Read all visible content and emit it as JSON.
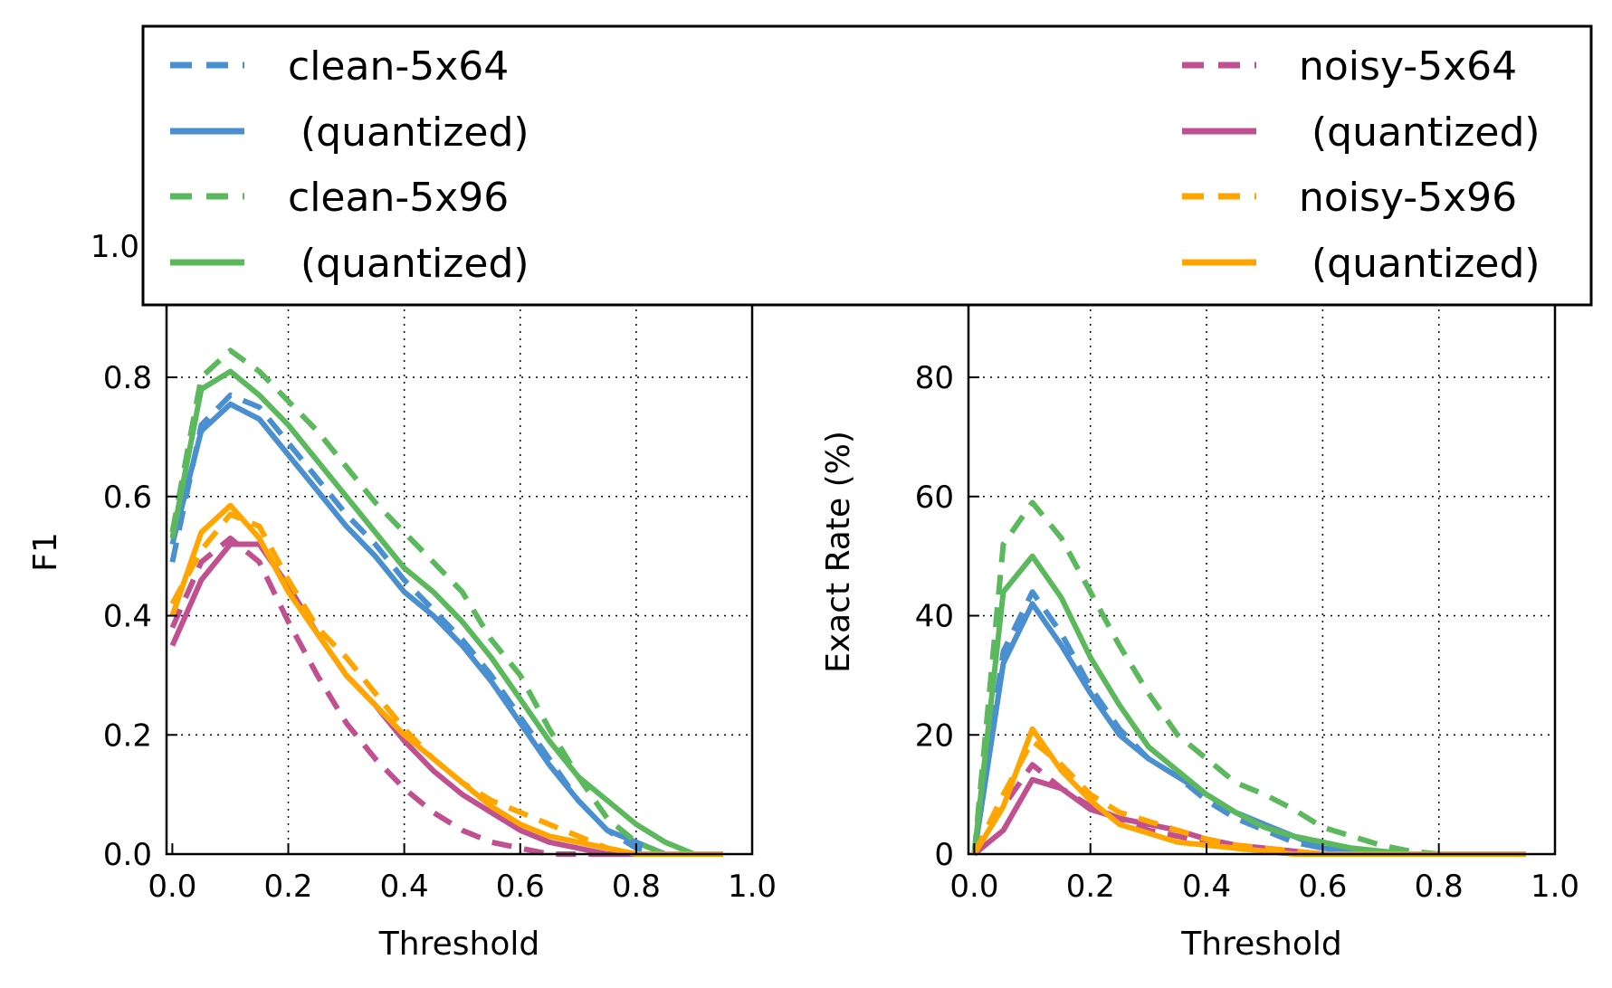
{
  "legend": {
    "entries": [
      {
        "label": "clean-5x64",
        "color": "#4a8fd0",
        "dashed": true,
        "column": "left"
      },
      {
        "label": " (quantized)",
        "color": "#4a8fd0",
        "dashed": false,
        "column": "left"
      },
      {
        "label": "clean-5x96",
        "color": "#5cb85c",
        "dashed": true,
        "column": "left"
      },
      {
        "label": " (quantized)",
        "color": "#5cb85c",
        "dashed": false,
        "column": "left"
      },
      {
        "label": "noisy-5x64",
        "color": "#c0508f",
        "dashed": true,
        "column": "right"
      },
      {
        "label": " (quantized)",
        "color": "#c0508f",
        "dashed": false,
        "column": "right"
      },
      {
        "label": "noisy-5x96",
        "color": "#ffa500",
        "dashed": true,
        "column": "right"
      },
      {
        "label": " (quantized)",
        "color": "#ffa500",
        "dashed": false,
        "column": "right"
      }
    ],
    "placement": "top"
  },
  "chart_data": [
    {
      "type": "line",
      "xlabel": "Threshold",
      "ylabel": "F1",
      "xlim": [
        0.0,
        1.0
      ],
      "ylim": [
        0.0,
        1.0
      ],
      "grid": true,
      "xticks": [
        "0.0",
        "0.2",
        "0.4",
        "0.6",
        "0.8",
        "1.0"
      ],
      "yticks": [
        "0.0",
        "0.2",
        "0.4",
        "0.6",
        "0.8",
        "1.0"
      ],
      "x": [
        0.0,
        0.05,
        0.1,
        0.15,
        0.2,
        0.25,
        0.3,
        0.35,
        0.4,
        0.45,
        0.5,
        0.55,
        0.6,
        0.65,
        0.7,
        0.75,
        0.8,
        0.85,
        0.9,
        0.95
      ],
      "series": [
        {
          "name": "clean-5x64",
          "color": "#4a8fd0",
          "dashed": true,
          "values": [
            0.49,
            0.72,
            0.77,
            0.75,
            0.69,
            0.63,
            0.57,
            0.52,
            0.46,
            0.41,
            0.36,
            0.3,
            0.23,
            0.16,
            0.09,
            0.04,
            0.01,
            0.0,
            0.0,
            0.0
          ]
        },
        {
          "name": "(quantized)",
          "color": "#4a8fd0",
          "dashed": false,
          "values": [
            0.52,
            0.71,
            0.755,
            0.73,
            0.67,
            0.61,
            0.55,
            0.5,
            0.44,
            0.4,
            0.35,
            0.29,
            0.22,
            0.15,
            0.09,
            0.04,
            0.02,
            0.0,
            0.0,
            0.0
          ]
        },
        {
          "name": "clean-5x96",
          "color": "#5cb85c",
          "dashed": true,
          "values": [
            0.54,
            0.8,
            0.845,
            0.81,
            0.76,
            0.71,
            0.65,
            0.59,
            0.54,
            0.49,
            0.44,
            0.36,
            0.3,
            0.21,
            0.13,
            0.06,
            0.02,
            0.0,
            0.0,
            0.0
          ]
        },
        {
          "name": "(quantized)",
          "color": "#5cb85c",
          "dashed": false,
          "values": [
            0.53,
            0.78,
            0.81,
            0.77,
            0.72,
            0.66,
            0.6,
            0.54,
            0.48,
            0.44,
            0.39,
            0.33,
            0.26,
            0.19,
            0.13,
            0.09,
            0.05,
            0.02,
            0.0,
            0.0
          ]
        },
        {
          "name": "noisy-5x64",
          "color": "#c0508f",
          "dashed": true,
          "values": [
            0.38,
            0.49,
            0.53,
            0.49,
            0.39,
            0.3,
            0.22,
            0.16,
            0.11,
            0.07,
            0.04,
            0.02,
            0.01,
            0.0,
            0.0,
            0.0,
            0.0,
            0.0,
            0.0,
            0.0
          ]
        },
        {
          "name": "(quantized)",
          "color": "#c0508f",
          "dashed": false,
          "values": [
            0.35,
            0.46,
            0.52,
            0.52,
            0.45,
            0.37,
            0.3,
            0.25,
            0.19,
            0.14,
            0.1,
            0.07,
            0.04,
            0.02,
            0.01,
            0.0,
            0.0,
            0.0,
            0.0,
            0.0
          ]
        },
        {
          "name": "noisy-5x96",
          "color": "#ffa500",
          "dashed": true,
          "values": [
            0.42,
            0.51,
            0.57,
            0.55,
            0.46,
            0.38,
            0.33,
            0.27,
            0.21,
            0.16,
            0.12,
            0.09,
            0.07,
            0.05,
            0.03,
            0.01,
            0.0,
            0.0,
            0.0,
            0.0
          ]
        },
        {
          "name": "(quantized)",
          "color": "#ffa500",
          "dashed": false,
          "values": [
            0.4,
            0.54,
            0.585,
            0.53,
            0.44,
            0.37,
            0.3,
            0.25,
            0.2,
            0.16,
            0.12,
            0.08,
            0.05,
            0.03,
            0.02,
            0.01,
            0.0,
            0.0,
            0.0,
            0.0
          ]
        }
      ]
    },
    {
      "type": "line",
      "xlabel": "Threshold",
      "ylabel": "Exact Rate (%)",
      "xlim": [
        0.0,
        1.0
      ],
      "ylim": [
        0,
        100
      ],
      "grid": true,
      "xticks": [
        "0.0",
        "0.2",
        "0.4",
        "0.6",
        "0.8",
        "1.0"
      ],
      "yticks": [
        "0",
        "20",
        "40",
        "60",
        "80"
      ],
      "x": [
        0.0,
        0.05,
        0.1,
        0.15,
        0.2,
        0.25,
        0.3,
        0.35,
        0.4,
        0.45,
        0.5,
        0.55,
        0.6,
        0.65,
        0.7,
        0.75,
        0.8,
        0.85,
        0.9,
        0.95
      ],
      "series": [
        {
          "name": "clean-5x64",
          "color": "#4a8fd0",
          "dashed": true,
          "values": [
            0,
            34,
            44,
            37,
            28,
            21,
            16,
            13,
            9,
            6,
            4,
            2,
            1,
            0.5,
            0,
            0,
            0,
            0,
            0,
            0
          ]
        },
        {
          "name": "(quantized)",
          "color": "#4a8fd0",
          "dashed": false,
          "values": [
            0,
            32,
            42,
            35,
            27,
            20,
            16,
            13,
            10,
            7,
            5,
            3,
            1,
            0.5,
            0,
            0,
            0,
            0,
            0,
            0
          ]
        },
        {
          "name": "clean-5x96",
          "color": "#5cb85c",
          "dashed": true,
          "values": [
            0,
            52,
            59,
            53,
            44,
            35,
            27,
            20,
            16,
            12,
            10,
            7.5,
            4.5,
            3,
            1.5,
            0.5,
            0,
            0,
            0,
            0
          ]
        },
        {
          "name": "(quantized)",
          "color": "#5cb85c",
          "dashed": false,
          "values": [
            0,
            44,
            50,
            43,
            33,
            25,
            18,
            14,
            10,
            7,
            4.5,
            3,
            2,
            1,
            0.5,
            0,
            0,
            0,
            0,
            0
          ]
        },
        {
          "name": "noisy-5x64",
          "color": "#c0508f",
          "dashed": true,
          "values": [
            0,
            8,
            15,
            11,
            8,
            6,
            4,
            3,
            2,
            1,
            0.5,
            0,
            0,
            0,
            0,
            0,
            0,
            0,
            0,
            0
          ]
        },
        {
          "name": "(quantized)",
          "color": "#c0508f",
          "dashed": false,
          "values": [
            0,
            4,
            12.5,
            11,
            7.5,
            6,
            5,
            4,
            2.5,
            1.5,
            1,
            0.5,
            0,
            0,
            0,
            0,
            0,
            0,
            0,
            0
          ]
        },
        {
          "name": "noisy-5x96",
          "color": "#ffa500",
          "dashed": true,
          "values": [
            0,
            10,
            19,
            15,
            10,
            7,
            5.5,
            4,
            2.5,
            1.5,
            1,
            0.5,
            0,
            0,
            0,
            0,
            0,
            0,
            0,
            0
          ]
        },
        {
          "name": "(quantized)",
          "color": "#ffa500",
          "dashed": false,
          "values": [
            0,
            8,
            21,
            14,
            9,
            5,
            3.5,
            2,
            1.5,
            1,
            0.5,
            0,
            0,
            0,
            0,
            0,
            0,
            0,
            0,
            0
          ]
        }
      ]
    }
  ]
}
